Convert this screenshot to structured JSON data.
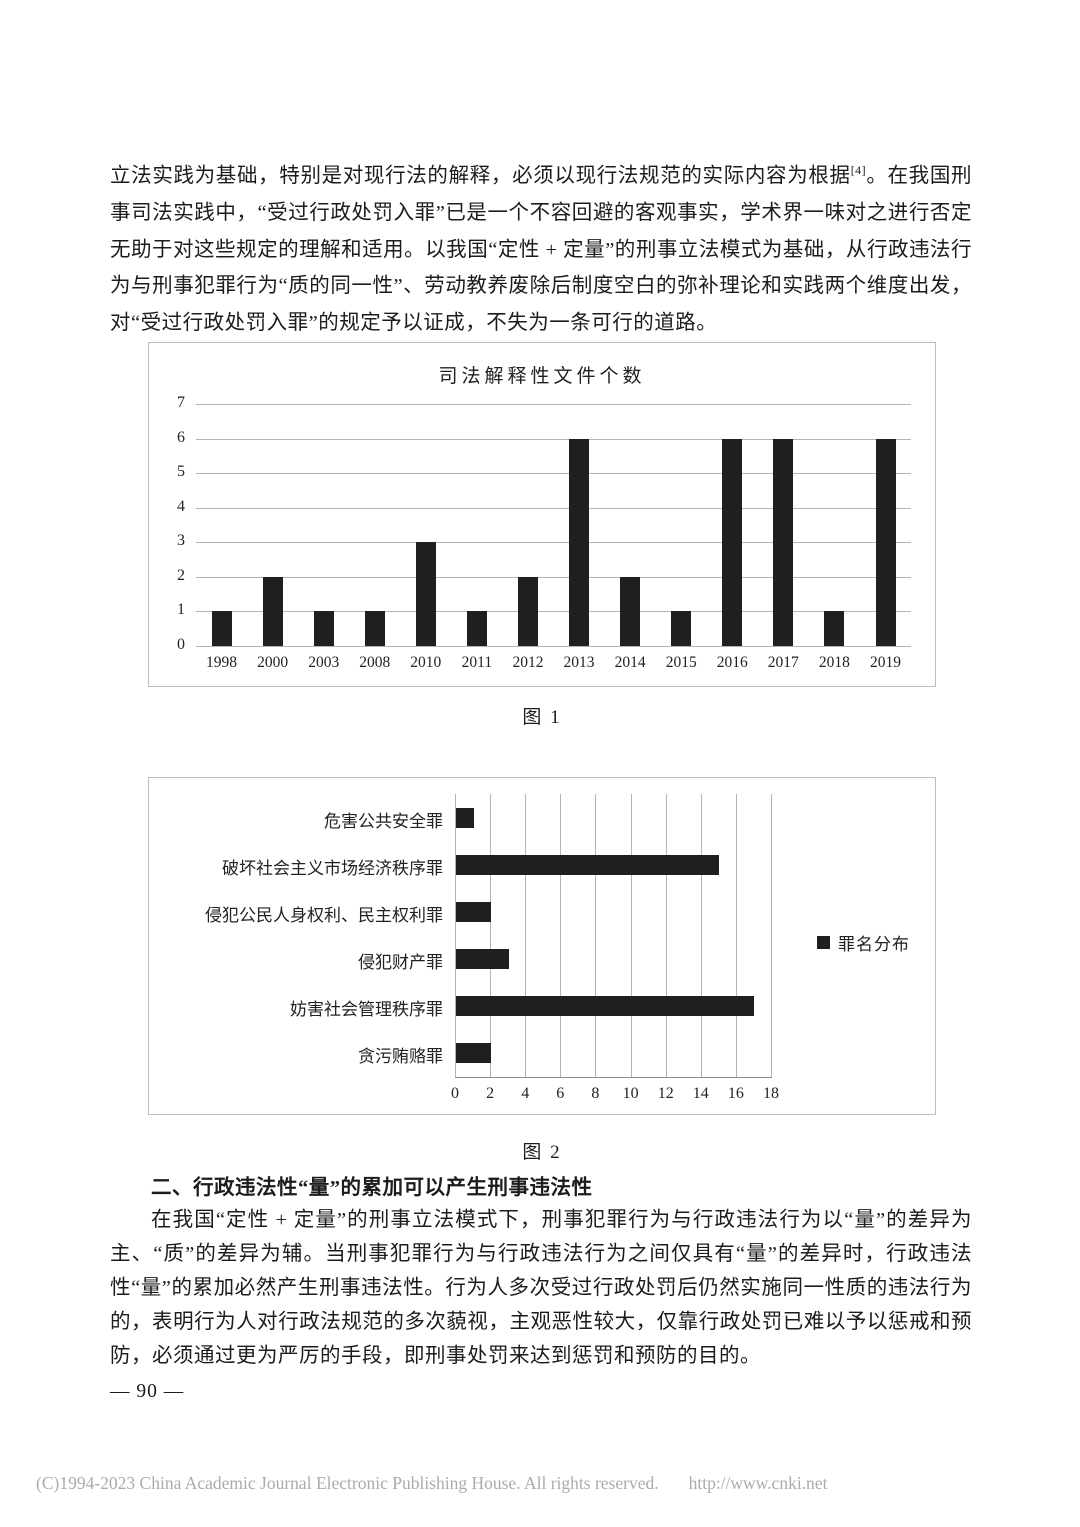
{
  "content": {
    "paragraph1_part1": "立法实践为基础，特别是对现行法的解释，必须以现行法规范的实际内容为根据",
    "footnote_marker": "[4]",
    "paragraph1_part2": "。在我国刑事司法实践中，“受过行政处罚入罪”已是一个不容回避的客观事实，学术界一味对之进行否定无助于对这些规定的理解和适用。以我国“定性 + 定量”的刑事立法模式为基础，从行政违法行为与刑事犯罪行为“质的同一性”、劳动教养废除后制度空白的弥补理论和实践两个维度出发，对“受过行政处罚入罪”的规定予以证成，不失为一条可行的道路。",
    "fig1_caption": "图 1",
    "fig2_caption": "图 2",
    "section_heading": "二、行政违法性“量”的累加可以产生刑事违法性",
    "paragraph2": "在我国“定性 + 定量”的刑事立法模式下，刑事犯罪行为与行政违法行为以“量”的差异为主、“质”的差异为辅。当刑事犯罪行为与行政违法行为之间仅具有“量”的差异时，行政违法性“量”的累加必然产生刑事违法性。行为人多次受过行政处罚后仍然实施同一性质的违法行为的，表明行为人对行政法规范的多次藐视，主观恶性较大，仅靠行政处罚已难以予以惩戒和预防，必须通过更为严厉的手段，即刑事处罚来达到惩罚和预防的目的。",
    "page_number": "— 90 —"
  },
  "footer": {
    "copyright": "(C)1994-2023 China Academic Journal Electronic Publishing House. All rights reserved.",
    "url": "http://www.cnki.net"
  },
  "colors": {
    "bar": "#1f1f1f",
    "gridline": "#b5b5b5",
    "box_border": "#bdbdbd",
    "footer_text": "#ababab"
  },
  "chart_data": [
    {
      "type": "bar",
      "title": "司法解释性文件个数",
      "categories": [
        "1998",
        "2000",
        "2003",
        "2008",
        "2010",
        "2011",
        "2012",
        "2013",
        "2014",
        "2015",
        "2016",
        "2017",
        "2018",
        "2019"
      ],
      "values": [
        1,
        2,
        1,
        1,
        3,
        1,
        2,
        6,
        2,
        1,
        6,
        6,
        1,
        6
      ],
      "xlabel": "",
      "ylabel": "",
      "ylim": [
        0,
        7
      ],
      "ytick_step": 1,
      "grid": "horizontal",
      "legend_position": "none"
    },
    {
      "type": "bar",
      "orientation": "horizontal",
      "title": "",
      "categories": [
        "危害公共安全罪",
        "破坏社会主义市场经济秩序罪",
        "侵犯公民人身权利、民主权利罪",
        "侵犯财产罪",
        "妨害社会管理秩序罪",
        "贪污贿赂罪"
      ],
      "values": [
        1,
        15,
        2,
        3,
        17,
        2
      ],
      "xlabel": "",
      "ylabel": "",
      "xlim": [
        0,
        18
      ],
      "xtick_step": 2,
      "grid": "vertical",
      "legend": "罪名分布",
      "legend_position": "right"
    }
  ]
}
